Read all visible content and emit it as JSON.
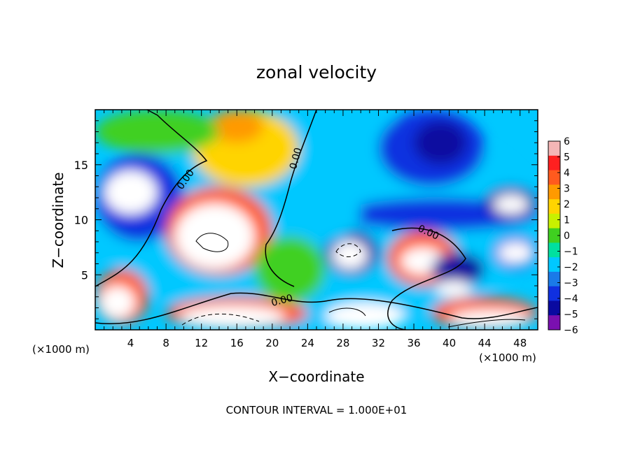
{
  "chart_data": {
    "type": "heatmap",
    "title": "zonal velocity",
    "xlabel": "X−coordinate",
    "ylabel": "Z−coordinate",
    "x_unit_left": "(×1000 m)",
    "x_unit_right": "(×1000 m)",
    "footer": "CONTOUR INTERVAL = 1.000E+01",
    "xlim": [
      0,
      50
    ],
    "ylim": [
      0,
      20
    ],
    "x_ticks": [
      "4",
      "8",
      "12",
      "16",
      "20",
      "24",
      "28",
      "32",
      "36",
      "40",
      "44",
      "48"
    ],
    "y_ticks": [
      "5",
      "10",
      "15"
    ],
    "colorbar": {
      "range": [
        -6,
        6
      ],
      "ticks": [
        "6",
        "5",
        "4",
        "3",
        "2",
        "1",
        "0",
        "−1",
        "−2",
        "−3",
        "−4",
        "−5",
        "−6"
      ],
      "colors": [
        "#f4b6b6",
        "#ff2020",
        "#ff5a1e",
        "#ff9a00",
        "#ffd400",
        "#c8f000",
        "#3fd020",
        "#00e0a0",
        "#00c8ff",
        "#1a7ae8",
        "#1030e0",
        "#0a0aa0",
        "#7a10b0"
      ]
    },
    "contour_labels": [
      {
        "text": "0.00",
        "x": 10.5,
        "z": 13.5,
        "angle": -55
      },
      {
        "text": "0.00",
        "x": 23.0,
        "z": 15.5,
        "angle": -75
      },
      {
        "text": "0.00",
        "x": 21.2,
        "z": 2.4,
        "angle": -15
      },
      {
        "text": "0.00",
        "x": 37.5,
        "z": 8.6,
        "angle": 25
      }
    ],
    "regions": [
      {
        "x": 0,
        "z": 0,
        "w": 50,
        "h": 20,
        "v": -1.5
      },
      {
        "x": 11,
        "z": 13,
        "w": 12,
        "h": 7,
        "v": 2.5
      },
      {
        "x": 13,
        "z": 17,
        "w": 6,
        "h": 3,
        "v": 3.5
      },
      {
        "x": 0,
        "z": 16,
        "w": 14,
        "h": 4,
        "v": 0.5
      },
      {
        "x": 0,
        "z": 8,
        "w": 10,
        "h": 8,
        "v": -4
      },
      {
        "x": 1,
        "z": 10.5,
        "w": 6,
        "h": 4,
        "v": 6
      },
      {
        "x": 8,
        "z": 5,
        "w": 12,
        "h": 8,
        "v": 4
      },
      {
        "x": 9,
        "z": 5.5,
        "w": 9,
        "h": 6,
        "v": 6
      },
      {
        "x": 0,
        "z": 0.5,
        "w": 6,
        "h": 5,
        "v": 4
      },
      {
        "x": 0.5,
        "z": 1,
        "w": 4,
        "h": 3,
        "v": 6
      },
      {
        "x": 8,
        "z": 0,
        "w": 16,
        "h": 3,
        "v": 4
      },
      {
        "x": 9.5,
        "z": 0.2,
        "w": 12,
        "h": 2,
        "v": 6
      },
      {
        "x": 26,
        "z": 0,
        "w": 9,
        "h": 2.5,
        "v": 6
      },
      {
        "x": 38,
        "z": 0,
        "w": 12,
        "h": 3,
        "v": 4
      },
      {
        "x": 40,
        "z": 0.3,
        "w": 9,
        "h": 1.5,
        "v": 6
      },
      {
        "x": 33,
        "z": 4,
        "w": 8,
        "h": 5,
        "v": 4
      },
      {
        "x": 34.5,
        "z": 5,
        "w": 5,
        "h": 2.5,
        "v": 6
      },
      {
        "x": 26,
        "z": 5,
        "w": 6,
        "h": 4,
        "v": -5
      },
      {
        "x": 26.8,
        "z": 5.5,
        "w": 4,
        "h": 2.6,
        "v": 6
      },
      {
        "x": 38,
        "z": 4,
        "w": 6,
        "h": 3,
        "v": -5
      },
      {
        "x": 38.5,
        "z": 3,
        "w": 4,
        "h": 1.5,
        "v": 6
      },
      {
        "x": 28,
        "z": 9,
        "w": 22,
        "h": 3,
        "v": -4
      },
      {
        "x": 32,
        "z": 13,
        "w": 12,
        "h": 7,
        "v": -3.5
      },
      {
        "x": 36,
        "z": 15,
        "w": 6,
        "h": 4,
        "v": -5
      },
      {
        "x": 44,
        "z": 10,
        "w": 6,
        "h": 3,
        "v": -5
      },
      {
        "x": 45,
        "z": 10.5,
        "w": 4,
        "h": 1.8,
        "v": 6
      },
      {
        "x": 45,
        "z": 5.5,
        "w": 5,
        "h": 3,
        "v": -4
      },
      {
        "x": 45.5,
        "z": 6,
        "w": 4,
        "h": 2,
        "v": 6
      },
      {
        "x": 18,
        "z": 2.5,
        "w": 8,
        "h": 6,
        "v": 0.5
      },
      {
        "x": 22,
        "z": 8,
        "w": 8,
        "h": 6,
        "v": -1.5
      }
    ]
  }
}
